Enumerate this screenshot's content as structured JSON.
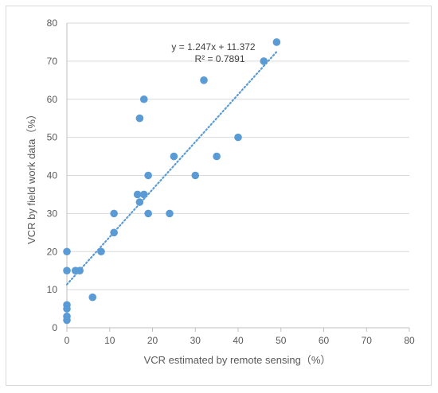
{
  "chart_data": {
    "type": "scatter",
    "xlabel": "VCR estimated by remote sensing（%）",
    "ylabel": "VCR by field work data（%）",
    "xlim": [
      0,
      80
    ],
    "ylim": [
      0,
      80
    ],
    "x_ticks": [
      "0",
      "10",
      "20",
      "30",
      "40",
      "50",
      "60",
      "70",
      "80"
    ],
    "y_ticks": [
      "0",
      "10",
      "20",
      "30",
      "40",
      "50",
      "60",
      "70",
      "80"
    ],
    "grid": "horizontal",
    "legend": "none",
    "series": [
      {
        "points": [
          [
            0,
            20
          ],
          [
            0,
            15
          ],
          [
            0,
            6
          ],
          [
            0,
            5
          ],
          [
            0,
            3
          ],
          [
            0,
            2
          ],
          [
            2,
            15
          ],
          [
            3,
            15
          ],
          [
            6,
            8
          ],
          [
            8,
            20
          ],
          [
            11,
            30
          ],
          [
            11,
            25
          ],
          [
            16.5,
            35
          ],
          [
            17,
            33
          ],
          [
            17,
            55
          ],
          [
            18,
            60
          ],
          [
            18,
            35
          ],
          [
            19,
            40
          ],
          [
            19,
            30
          ],
          [
            24,
            30
          ],
          [
            25,
            45
          ],
          [
            30,
            40
          ],
          [
            32,
            65
          ],
          [
            35,
            45
          ],
          [
            40,
            50
          ],
          [
            46,
            70
          ],
          [
            49,
            75
          ]
        ],
        "color": "#5b9bd5"
      }
    ],
    "trendline": {
      "type": "linear",
      "slope": 1.247,
      "intercept": 11.372,
      "x_range": [
        0,
        49
      ],
      "style": "dotted",
      "color": "#5b9bd5",
      "equation_text": "y = 1.247x + 11.372",
      "r2_text": "R² = 0.7891"
    },
    "colors": {
      "grid": "#d9d9d9",
      "axis": "#bfbfbf",
      "marker": "#5b9bd5"
    }
  }
}
